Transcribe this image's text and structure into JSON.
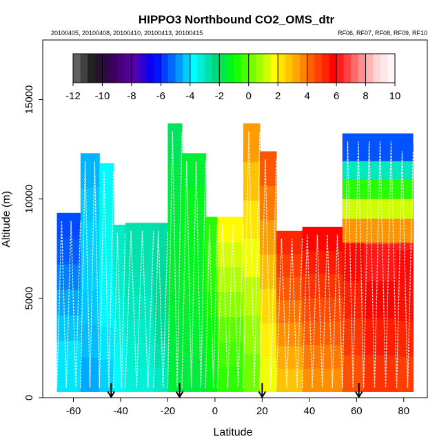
{
  "chart_data": {
    "type": "heatmap",
    "title": "HIPPO3 Northbound CO2_OMS_dtr",
    "subtitle_left": "20100405, 20100408, 20100410, 20100413, 20100415",
    "subtitle_right": "RF06, RF07, RF08, RF09, RF10",
    "xlabel": "Latitude",
    "ylabel": "Altitude (m)",
    "xlim": [
      -73,
      90
    ],
    "ylim": [
      0,
      18000
    ],
    "x_ticks": [
      -60,
      -40,
      -20,
      0,
      20,
      40,
      60,
      80
    ],
    "x_tick_labels": [
      "-60",
      "-40",
      "-20",
      "0",
      "20",
      "40",
      "60",
      "80"
    ],
    "y_ticks": [
      0,
      5000,
      10000,
      15000
    ],
    "y_tick_labels": [
      "0",
      "5000",
      "10000",
      "15000"
    ],
    "colorbar": {
      "range": [
        -12,
        10
      ],
      "tick_values": [
        -12,
        -10,
        -8,
        -6,
        -4,
        -2,
        0,
        2,
        4,
        6,
        8,
        10
      ],
      "tick_labels": [
        "-12",
        "-10",
        "-8",
        "-6",
        "-4",
        "-2",
        "0",
        "2",
        "4",
        "6",
        "8",
        "10"
      ]
    },
    "colors": {
      "colorbar_stops": [
        "#707070",
        "#1a1a1a",
        "#3b0060",
        "#5a00a8",
        "#0000ff",
        "#0073ff",
        "#00ffff",
        "#00d48a",
        "#00ff00",
        "#7fff00",
        "#ffff00",
        "#ffb000",
        "#ff5000",
        "#ff0000",
        "#ff6a6a",
        "#ffd0d0",
        "#ffffff"
      ],
      "profile_line": "#ffffff",
      "arrow": "#000000"
    },
    "arrows_latitude": [
      -44,
      -15,
      20,
      61
    ],
    "columns": [
      {
        "lat0": -67,
        "lat1": -57,
        "alt_top": 9300,
        "values": [
          -4,
          -4,
          -4.3,
          -4.6,
          -5,
          -5.4,
          -5.6
        ]
      },
      {
        "lat0": -57,
        "lat1": -49,
        "alt_top": 12300,
        "values": [
          -4.6,
          -4.4,
          -4.3,
          -4.2,
          -4.2,
          -4.3,
          -4.5
        ]
      },
      {
        "lat0": -49,
        "lat1": -43,
        "alt_top": 11800,
        "values": [
          -4.2,
          -4,
          -3.8,
          -3.7,
          -3.6,
          -3.6,
          -3.8
        ]
      },
      {
        "lat0": -43,
        "lat1": -38,
        "alt_top": 8700,
        "values": [
          -3.8,
          -3.6,
          -3.4,
          -3.3,
          -3.2,
          -3.1,
          -3.1
        ]
      },
      {
        "lat0": -38,
        "lat1": -26,
        "alt_top": 8800,
        "values": [
          -3.3,
          -3.2,
          -3.1,
          -3.0,
          -2.9,
          -2.8,
          -2.8
        ]
      },
      {
        "lat0": -26,
        "lat1": -20,
        "alt_top": 8800,
        "values": [
          -3,
          -2.8,
          -2.6,
          -2.5,
          -2.5,
          -2.6,
          -2.7
        ]
      },
      {
        "lat0": -20,
        "lat1": -14,
        "alt_top": 13800,
        "values": [
          -1.6,
          -1.6,
          -1.5,
          -1.5,
          -1.6,
          -1.7,
          -1.9
        ]
      },
      {
        "lat0": -14,
        "lat1": -4,
        "alt_top": 12300,
        "values": [
          -1.6,
          -1.5,
          -1.4,
          -1.3,
          -1.3,
          -1.3,
          -1.5
        ]
      },
      {
        "lat0": -4,
        "lat1": 1,
        "alt_top": 9100,
        "values": [
          -1.2,
          -1.1,
          -1.0,
          -0.8,
          -0.6,
          -0.5,
          -0.6
        ]
      },
      {
        "lat0": 1,
        "lat1": 12,
        "alt_top": 9100,
        "values": [
          -0.5,
          -0.3,
          0,
          0.5,
          0.9,
          1.3,
          1.8
        ]
      },
      {
        "lat0": 12,
        "lat1": 19,
        "alt_top": 13800,
        "values": [
          0.2,
          0.6,
          1.0,
          1.6,
          2.2,
          2.8,
          3.4
        ]
      },
      {
        "lat0": 19,
        "lat1": 26,
        "alt_top": 12400,
        "values": [
          1.6,
          2.0,
          2.4,
          2.9,
          3.4,
          3.9,
          4.4
        ]
      },
      {
        "lat0": 26,
        "lat1": 37,
        "alt_top": 8400,
        "values": [
          2.8,
          3.2,
          3.6,
          4.0,
          4.4,
          4.8,
          5.2
        ]
      },
      {
        "lat0": 37,
        "lat1": 54,
        "alt_top": 8600,
        "values": [
          3.6,
          3.9,
          4.3,
          4.6,
          5.0,
          5.4,
          5.8
        ]
      },
      {
        "lat0": 54,
        "lat1": 63,
        "alt_top": 13300,
        "values": [
          4.5,
          4.9,
          5.3,
          5.7,
          6.0,
          6.4,
          6.8
        ]
      },
      {
        "lat0": 63,
        "lat1": 77,
        "alt_top": 13300,
        "values": [
          5.0,
          5.4,
          5.8,
          6.2,
          6.6,
          7.0,
          7.4
        ]
      },
      {
        "lat0": 77,
        "lat1": 84,
        "alt_top": 12800,
        "values": [
          4.8,
          5.2,
          5.6,
          6.0,
          6.3,
          6.6,
          7.0
        ]
      }
    ],
    "upper_layers": [
      {
        "lat0": 54,
        "lat1": 84,
        "alt0": 7800,
        "alt1": 9000,
        "value": 3.5
      },
      {
        "lat0": 54,
        "lat1": 84,
        "alt0": 9000,
        "alt1": 10000,
        "value": 1.2
      },
      {
        "lat0": 54,
        "lat1": 84,
        "alt0": 10000,
        "alt1": 11000,
        "value": -0.6
      },
      {
        "lat0": 54,
        "lat1": 84,
        "alt0": 11000,
        "alt1": 11900,
        "value": -3.0
      },
      {
        "lat0": 54,
        "lat1": 84,
        "alt0": 11900,
        "alt1": 13300,
        "value": -5.5
      }
    ]
  }
}
